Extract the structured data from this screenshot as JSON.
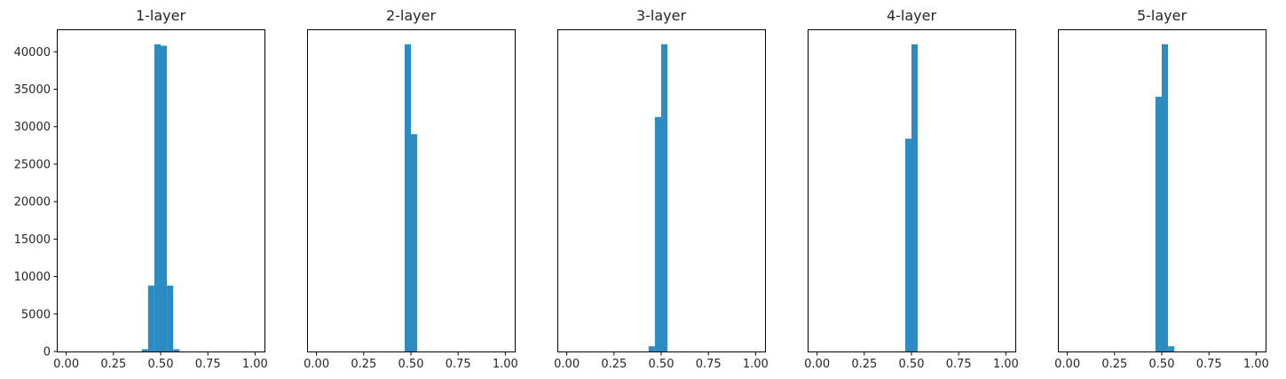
{
  "figure": {
    "background": "#ffffff",
    "bar_color": "#2b8cc4"
  },
  "chart_data": [
    {
      "type": "bar",
      "title": "1-layer",
      "xlim": [
        -0.05,
        1.05
      ],
      "ylim": [
        0,
        43000
      ],
      "x_ticks": [
        0.0,
        0.25,
        0.5,
        0.75,
        1.0
      ],
      "x_tick_labels": [
        "0.00",
        "0.25",
        "0.50",
        "0.75",
        "1.00"
      ],
      "y_ticks": [
        0,
        5000,
        10000,
        15000,
        20000,
        25000,
        30000,
        35000,
        40000
      ],
      "y_tick_labels": [
        "0",
        "5000",
        "10000",
        "15000",
        "20000",
        "25000",
        "30000",
        "35000",
        "40000"
      ],
      "bin_width": 0.0333,
      "bins": [
        {
          "x": 0.4,
          "value": 300
        },
        {
          "x": 0.4333,
          "value": 8800
        },
        {
          "x": 0.4667,
          "value": 41000
        },
        {
          "x": 0.5,
          "value": 40800
        },
        {
          "x": 0.5333,
          "value": 8800
        },
        {
          "x": 0.5667,
          "value": 300
        }
      ]
    },
    {
      "type": "bar",
      "title": "2-layer",
      "xlim": [
        -0.05,
        1.05
      ],
      "ylim": [
        0,
        43000
      ],
      "x_ticks": [
        0.0,
        0.25,
        0.5,
        0.75,
        1.0
      ],
      "x_tick_labels": [
        "0.00",
        "0.25",
        "0.50",
        "0.75",
        "1.00"
      ],
      "y_ticks": [],
      "y_tick_labels": [],
      "bin_width": 0.0333,
      "bins": [
        {
          "x": 0.4667,
          "value": 41000
        },
        {
          "x": 0.5,
          "value": 29000
        }
      ]
    },
    {
      "type": "bar",
      "title": "3-layer",
      "xlim": [
        -0.05,
        1.05
      ],
      "ylim": [
        0,
        43000
      ],
      "x_ticks": [
        0.0,
        0.25,
        0.5,
        0.75,
        1.0
      ],
      "x_tick_labels": [
        "0.00",
        "0.25",
        "0.50",
        "0.75",
        "1.00"
      ],
      "y_ticks": [],
      "y_tick_labels": [],
      "bin_width": 0.0333,
      "bins": [
        {
          "x": 0.4333,
          "value": 700
        },
        {
          "x": 0.4667,
          "value": 31300
        },
        {
          "x": 0.5,
          "value": 41000
        }
      ]
    },
    {
      "type": "bar",
      "title": "4-layer",
      "xlim": [
        -0.05,
        1.05
      ],
      "ylim": [
        0,
        43000
      ],
      "x_ticks": [
        0.0,
        0.25,
        0.5,
        0.75,
        1.0
      ],
      "x_tick_labels": [
        "0.00",
        "0.25",
        "0.50",
        "0.75",
        "1.00"
      ],
      "y_ticks": [],
      "y_tick_labels": [],
      "bin_width": 0.0333,
      "bins": [
        {
          "x": 0.4667,
          "value": 28400
        },
        {
          "x": 0.5,
          "value": 41000
        }
      ]
    },
    {
      "type": "bar",
      "title": "5-layer",
      "xlim": [
        -0.05,
        1.05
      ],
      "ylim": [
        0,
        43000
      ],
      "x_ticks": [
        0.0,
        0.25,
        0.5,
        0.75,
        1.0
      ],
      "x_tick_labels": [
        "0.00",
        "0.25",
        "0.50",
        "0.75",
        "1.00"
      ],
      "y_ticks": [],
      "y_tick_labels": [],
      "bin_width": 0.0333,
      "bins": [
        {
          "x": 0.4667,
          "value": 34000
        },
        {
          "x": 0.5,
          "value": 41000
        },
        {
          "x": 0.5333,
          "value": 700
        }
      ]
    }
  ]
}
